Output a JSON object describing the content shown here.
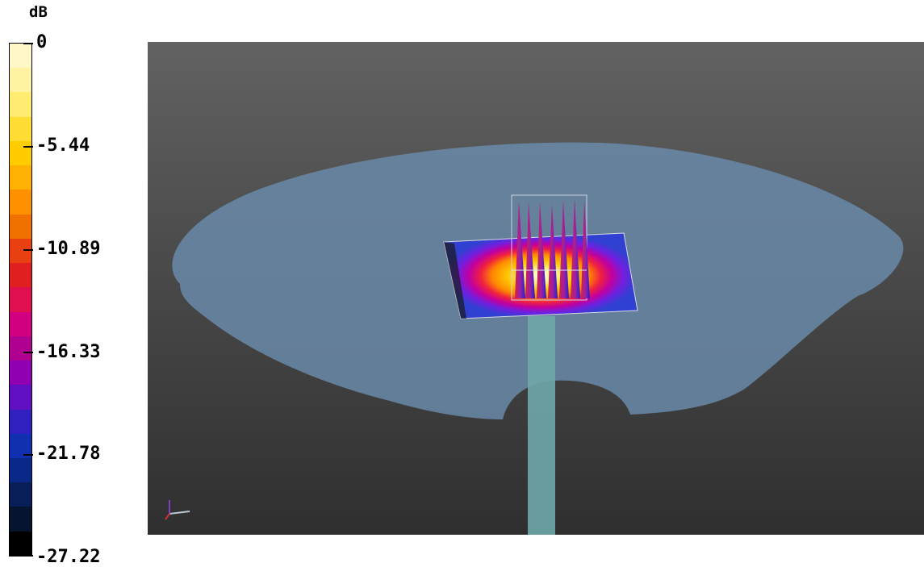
{
  "legend": {
    "unit": "dB",
    "ticks": [
      "0",
      "-5.44",
      "-10.89",
      "-16.33",
      "-21.78",
      "-27.22"
    ],
    "colors": [
      "#fff7c8",
      "#fff2a0",
      "#ffec70",
      "#ffdd33",
      "#ffcc00",
      "#ffb000",
      "#ff9000",
      "#f07000",
      "#e84010",
      "#e02020",
      "#e01050",
      "#d00080",
      "#b00090",
      "#9000b0",
      "#6010c0",
      "#3020c0",
      "#1030b0",
      "#0a2888",
      "#081e58",
      "#061430",
      "#000000"
    ]
  },
  "viewport": {
    "background_top": "#626262",
    "background_bottom": "#2f2f2f",
    "surface_color": "#6a8aa8",
    "stem_color": "#6fa7a8"
  }
}
